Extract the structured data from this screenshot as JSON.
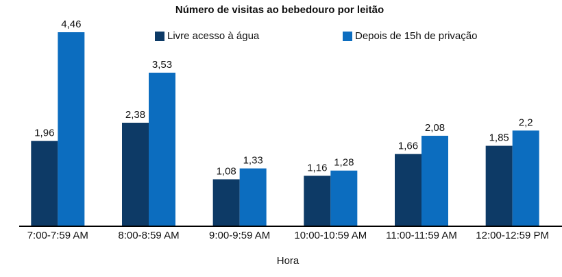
{
  "chart_data": {
    "type": "bar",
    "title": "Número de visitas ao bebedouro por leitão",
    "x_label": "Hora",
    "categories": [
      "7:00-7:59 AM",
      "8:00-8:59 AM",
      "9:00-9:59 AM",
      "10:00-10:59 AM",
      "11:00-11:59 AM",
      "12:00-12:59 PM"
    ],
    "series": [
      {
        "name": "Livre acesso à água",
        "color": "#0d3a66",
        "values": [
          1.96,
          2.38,
          1.08,
          1.16,
          1.66,
          1.85
        ],
        "value_labels": [
          "1,96",
          "2,38",
          "1,08",
          "1,16",
          "1,66",
          "1,85"
        ]
      },
      {
        "name": "Depois de 15h de privação",
        "color": "#0c6dbf",
        "values": [
          4.46,
          3.53,
          1.33,
          1.28,
          2.08,
          2.2
        ],
        "value_labels": [
          "4,46",
          "3,53",
          "1,33",
          "1,28",
          "2,08",
          "2,2"
        ]
      }
    ]
  }
}
